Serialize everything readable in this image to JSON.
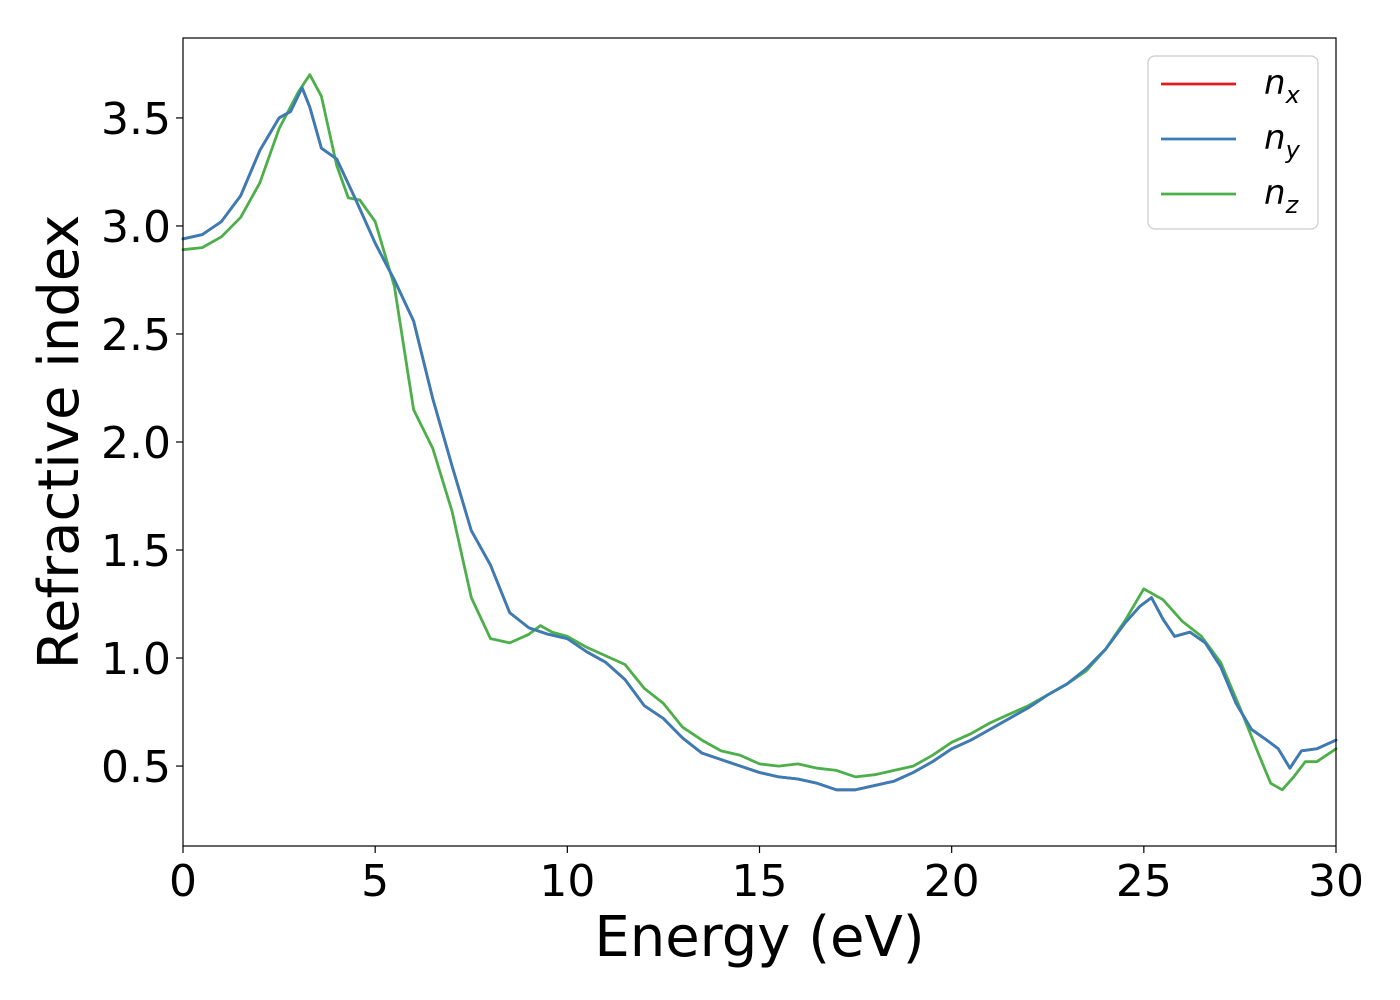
{
  "chart_data": {
    "type": "line",
    "xlabel": "Energy (eV)",
    "ylabel": "Refractive index",
    "xlim": [
      0,
      30
    ],
    "ylim": [
      0.13,
      3.87
    ],
    "xticks": [
      0,
      5,
      10,
      15,
      20,
      25,
      30
    ],
    "xtick_labels": [
      "0",
      "5",
      "10",
      "15",
      "20",
      "25",
      "30"
    ],
    "yticks": [
      0.5,
      1.0,
      1.5,
      2.0,
      2.5,
      3.0,
      3.5
    ],
    "ytick_labels": [
      "0.5",
      "1.0",
      "1.5",
      "2.0",
      "2.5",
      "3.0",
      "3.5"
    ],
    "grid": false,
    "legend_position": "top-right",
    "series": [
      {
        "name": "n_x",
        "legend_base": "n",
        "legend_sub": "x",
        "color": "#e41a1c",
        "x": [
          0,
          0.5,
          1,
          1.5,
          2,
          2.5,
          2.8,
          3.1,
          3.3,
          3.6,
          4,
          4.5,
          5,
          5.5,
          6,
          6.5,
          7,
          7.5,
          8,
          8.5,
          9,
          9.5,
          10,
          10.5,
          11,
          11.5,
          12,
          12.5,
          13,
          13.5,
          14,
          14.5,
          15,
          15.5,
          16,
          16.5,
          17,
          17.5,
          18,
          18.5,
          19,
          19.5,
          20,
          20.5,
          21,
          21.5,
          22,
          22.5,
          23,
          23.5,
          24,
          24.5,
          24.9,
          25.2,
          25.5,
          25.8,
          26.2,
          26.6,
          27,
          27.4,
          27.8,
          28.2,
          28.5,
          28.8,
          29.1,
          29.5,
          30
        ],
        "y": [
          2.94,
          2.96,
          3.02,
          3.14,
          3.35,
          3.5,
          3.53,
          3.64,
          3.55,
          3.36,
          3.31,
          3.12,
          2.92,
          2.75,
          2.56,
          2.2,
          1.89,
          1.59,
          1.43,
          1.21,
          1.14,
          1.11,
          1.09,
          1.03,
          0.98,
          0.9,
          0.78,
          0.72,
          0.63,
          0.56,
          0.53,
          0.5,
          0.47,
          0.45,
          0.44,
          0.42,
          0.39,
          0.39,
          0.41,
          0.43,
          0.47,
          0.52,
          0.58,
          0.62,
          0.67,
          0.72,
          0.77,
          0.83,
          0.88,
          0.95,
          1.04,
          1.16,
          1.24,
          1.28,
          1.18,
          1.1,
          1.12,
          1.07,
          0.96,
          0.79,
          0.67,
          0.62,
          0.58,
          0.49,
          0.57,
          0.58,
          0.62
        ]
      },
      {
        "name": "n_y",
        "legend_base": "n",
        "legend_sub": "y",
        "color": "#377eb8",
        "x": [
          0,
          0.5,
          1,
          1.5,
          2,
          2.5,
          2.8,
          3.1,
          3.3,
          3.6,
          4,
          4.5,
          5,
          5.5,
          6,
          6.5,
          7,
          7.5,
          8,
          8.5,
          9,
          9.5,
          10,
          10.5,
          11,
          11.5,
          12,
          12.5,
          13,
          13.5,
          14,
          14.5,
          15,
          15.5,
          16,
          16.5,
          17,
          17.5,
          18,
          18.5,
          19,
          19.5,
          20,
          20.5,
          21,
          21.5,
          22,
          22.5,
          23,
          23.5,
          24,
          24.5,
          24.9,
          25.2,
          25.5,
          25.8,
          26.2,
          26.6,
          27,
          27.4,
          27.8,
          28.2,
          28.5,
          28.8,
          29.1,
          29.5,
          30
        ],
        "y": [
          2.94,
          2.96,
          3.02,
          3.14,
          3.35,
          3.5,
          3.53,
          3.64,
          3.55,
          3.36,
          3.31,
          3.12,
          2.92,
          2.75,
          2.56,
          2.2,
          1.89,
          1.59,
          1.43,
          1.21,
          1.14,
          1.11,
          1.09,
          1.03,
          0.98,
          0.9,
          0.78,
          0.72,
          0.63,
          0.56,
          0.53,
          0.5,
          0.47,
          0.45,
          0.44,
          0.42,
          0.39,
          0.39,
          0.41,
          0.43,
          0.47,
          0.52,
          0.58,
          0.62,
          0.67,
          0.72,
          0.77,
          0.83,
          0.88,
          0.95,
          1.04,
          1.16,
          1.24,
          1.28,
          1.18,
          1.1,
          1.12,
          1.07,
          0.96,
          0.79,
          0.67,
          0.62,
          0.58,
          0.49,
          0.57,
          0.58,
          0.62
        ]
      },
      {
        "name": "n_z",
        "legend_base": "n",
        "legend_sub": "z",
        "color": "#4daf4a",
        "x": [
          0,
          0.5,
          1,
          1.5,
          2,
          2.5,
          3,
          3.3,
          3.6,
          4,
          4.3,
          4.6,
          5,
          5.5,
          6,
          6.5,
          7,
          7.5,
          8,
          8.5,
          9,
          9.3,
          9.6,
          10,
          10.5,
          11,
          11.5,
          12,
          12.5,
          13,
          13.5,
          14,
          14.5,
          15,
          15.5,
          16,
          16.5,
          17,
          17.5,
          18,
          18.5,
          19,
          19.5,
          20,
          20.5,
          21,
          21.5,
          22,
          22.5,
          23,
          23.5,
          24,
          24.5,
          25,
          25.5,
          26,
          26.5,
          27,
          27.5,
          28,
          28.3,
          28.6,
          28.9,
          29.2,
          29.5,
          30
        ],
        "y": [
          2.89,
          2.9,
          2.95,
          3.04,
          3.2,
          3.45,
          3.62,
          3.7,
          3.6,
          3.28,
          3.13,
          3.12,
          3.02,
          2.72,
          2.15,
          1.97,
          1.68,
          1.28,
          1.09,
          1.07,
          1.11,
          1.15,
          1.12,
          1.1,
          1.05,
          1.01,
          0.97,
          0.86,
          0.79,
          0.68,
          0.62,
          0.57,
          0.55,
          0.51,
          0.5,
          0.51,
          0.49,
          0.48,
          0.45,
          0.46,
          0.48,
          0.5,
          0.55,
          0.61,
          0.65,
          0.7,
          0.74,
          0.78,
          0.83,
          0.88,
          0.94,
          1.04,
          1.17,
          1.32,
          1.27,
          1.17,
          1.1,
          0.98,
          0.77,
          0.55,
          0.42,
          0.39,
          0.45,
          0.52,
          0.52,
          0.58
        ]
      }
    ]
  }
}
